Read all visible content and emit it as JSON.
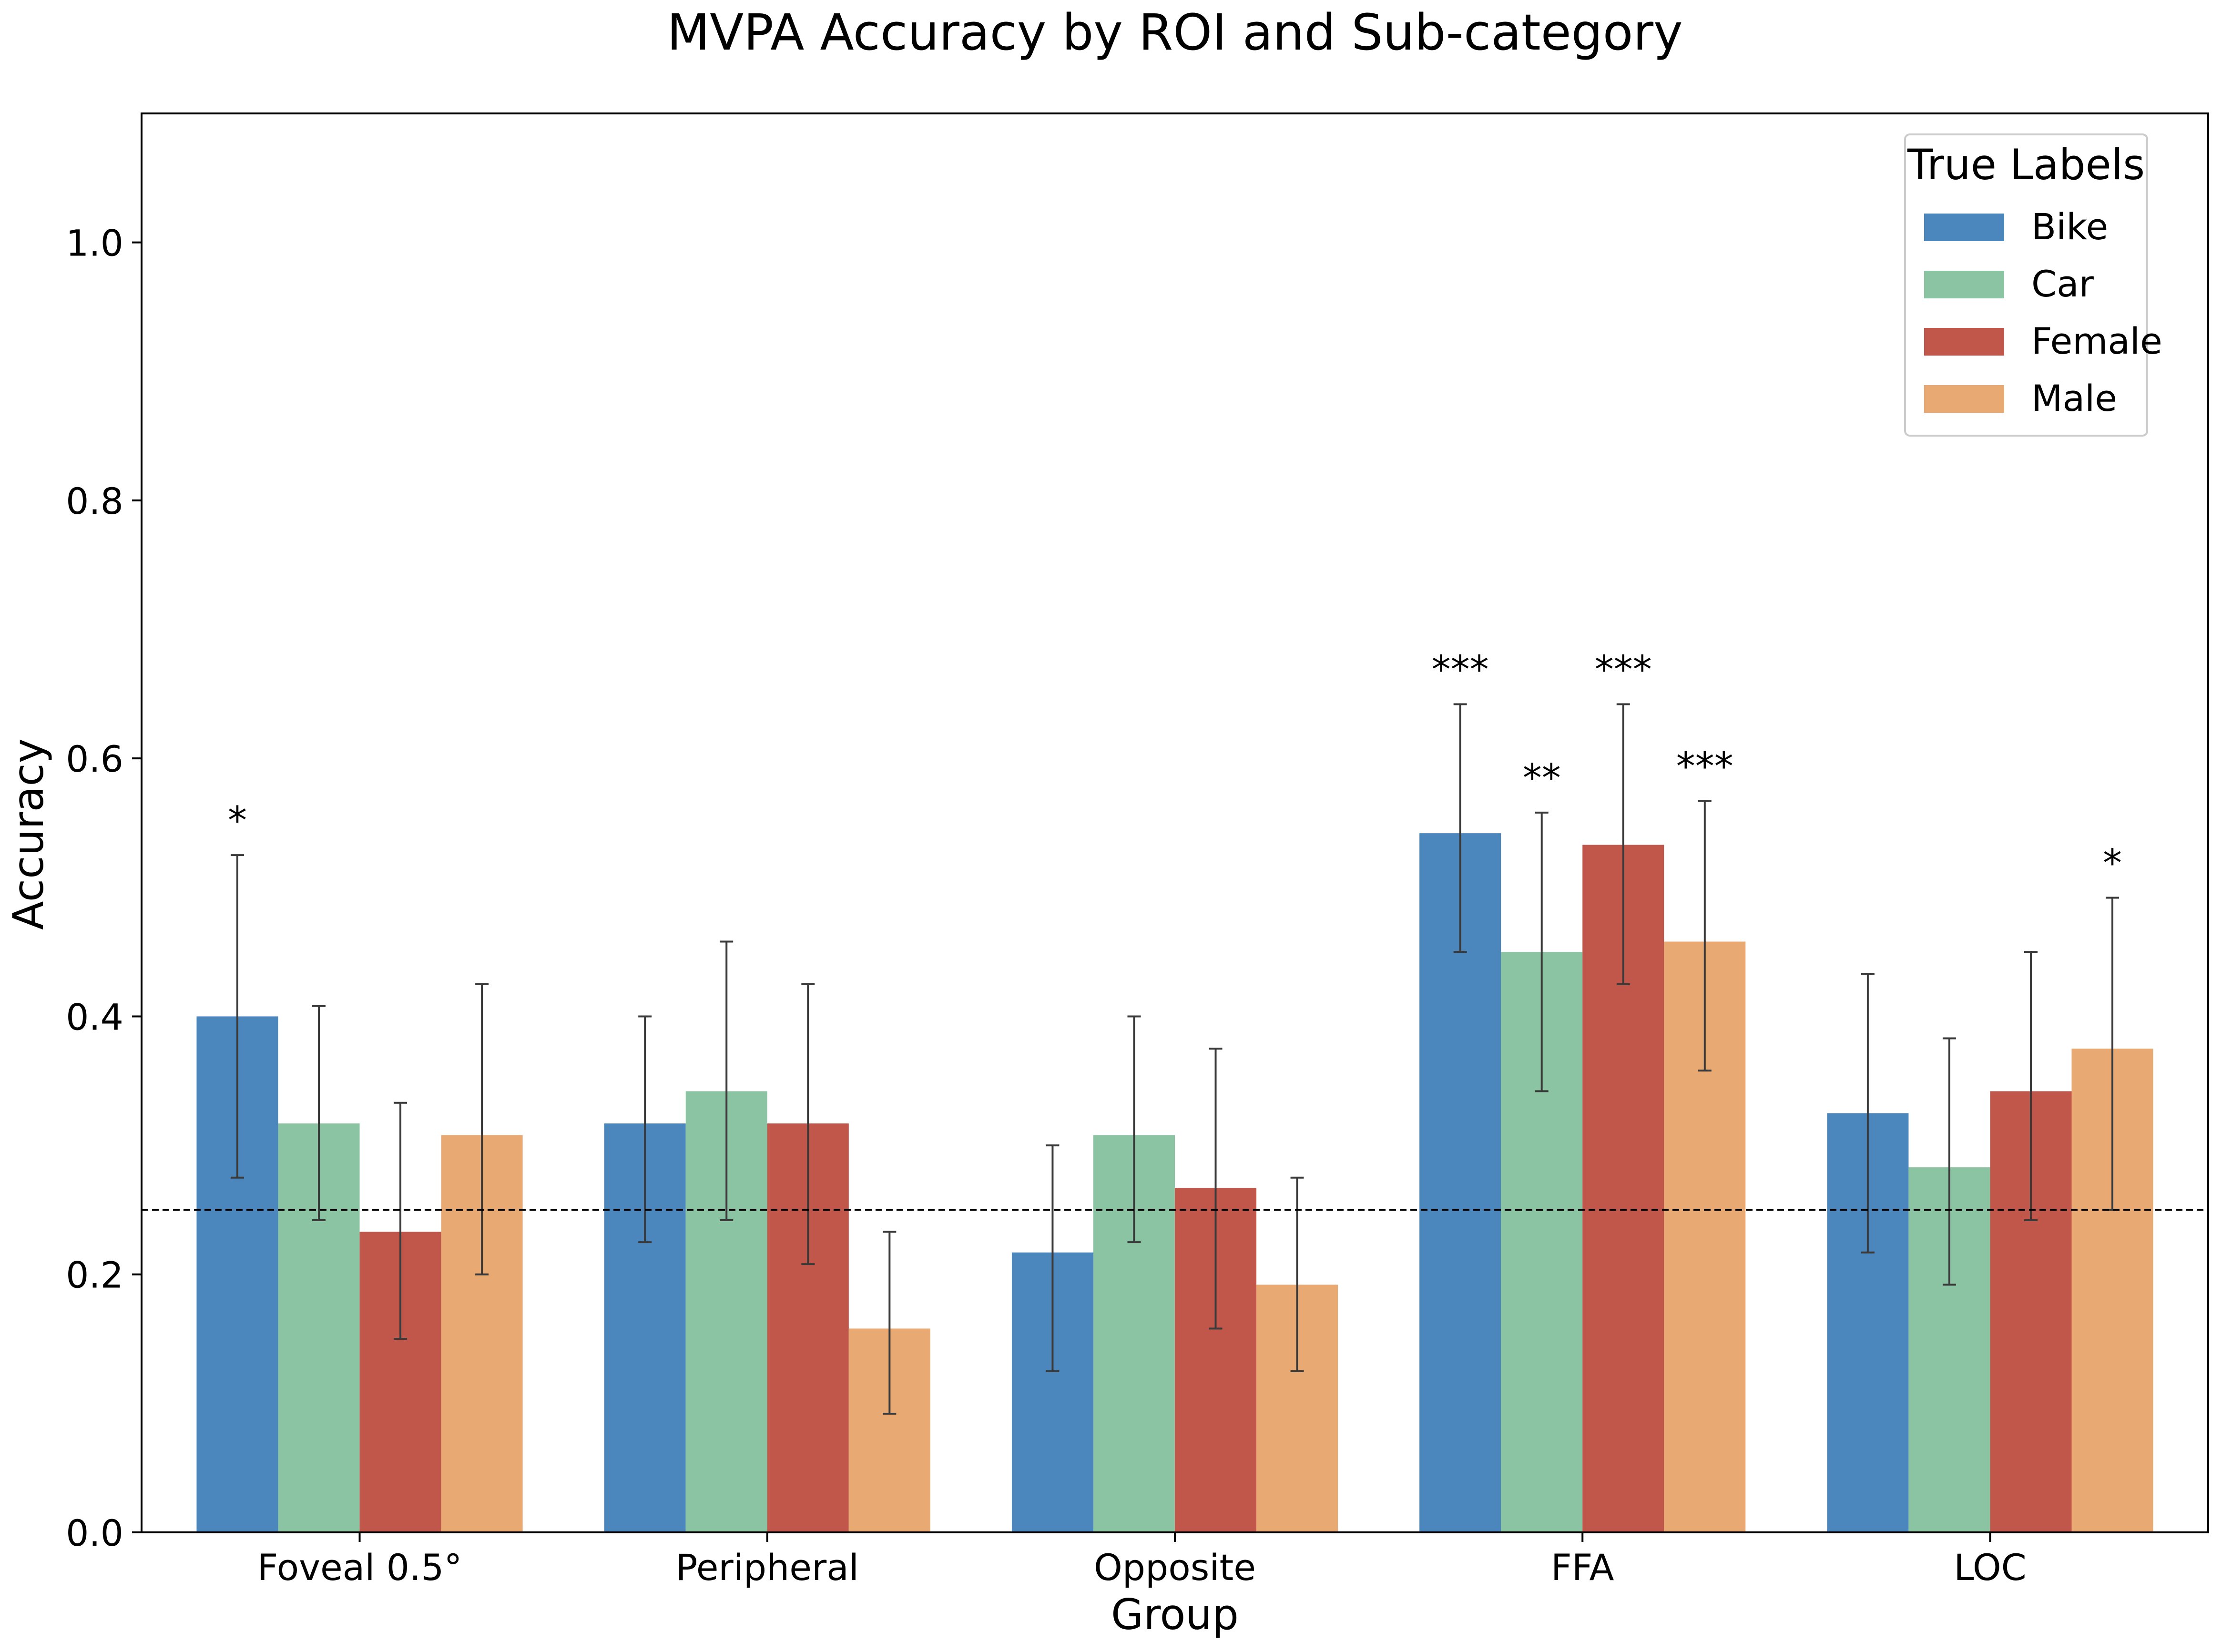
{
  "chart_data": {
    "type": "bar",
    "title": "MVPA Accuracy by ROI and Sub-category",
    "xlabel": "Group",
    "ylabel": "Accuracy",
    "ylim": [
      0,
      1.1
    ],
    "yticks": [
      0.0,
      0.2,
      0.4,
      0.6,
      0.8,
      1.0
    ],
    "ytick_labels": [
      "0.0",
      "0.2",
      "0.4",
      "0.6",
      "0.8",
      "1.0"
    ],
    "categories": [
      "Foveal 0.5°",
      "Peripheral",
      "Opposite",
      "FFA",
      "LOC"
    ],
    "chance_line": 0.25,
    "grid": false,
    "legend": {
      "title": "True Labels",
      "position": "top-right"
    },
    "series": [
      {
        "name": "Bike",
        "color": "#4b87bd",
        "values": [
          0.4,
          0.317,
          0.217,
          0.542,
          0.325
        ],
        "err_low": [
          0.275,
          0.225,
          0.125,
          0.45,
          0.217
        ],
        "err_high": [
          0.525,
          0.4,
          0.3,
          0.642,
          0.433
        ],
        "significance": [
          "*",
          "",
          "",
          "***",
          ""
        ]
      },
      {
        "name": "Car",
        "color": "#8bc4a2",
        "values": [
          0.317,
          0.342,
          0.308,
          0.45,
          0.283
        ],
        "err_low": [
          0.242,
          0.242,
          0.225,
          0.342,
          0.192
        ],
        "err_high": [
          0.408,
          0.458,
          0.4,
          0.558,
          0.383
        ],
        "significance": [
          "",
          "",
          "",
          "**",
          ""
        ]
      },
      {
        "name": "Female",
        "color": "#c0574a",
        "values": [
          0.233,
          0.317,
          0.267,
          0.533,
          0.342
        ],
        "err_low": [
          0.15,
          0.208,
          0.158,
          0.425,
          0.242
        ],
        "err_high": [
          0.333,
          0.425,
          0.375,
          0.642,
          0.45
        ],
        "significance": [
          "",
          "",
          "",
          "***",
          ""
        ]
      },
      {
        "name": "Male",
        "color": "#e8aa72",
        "values": [
          0.308,
          0.158,
          0.192,
          0.458,
          0.375
        ],
        "err_low": [
          0.2,
          0.092,
          0.125,
          0.358,
          0.25
        ],
        "err_high": [
          0.425,
          0.233,
          0.275,
          0.567,
          0.492
        ],
        "significance": [
          "",
          "",
          "",
          "***",
          "*"
        ]
      }
    ]
  }
}
